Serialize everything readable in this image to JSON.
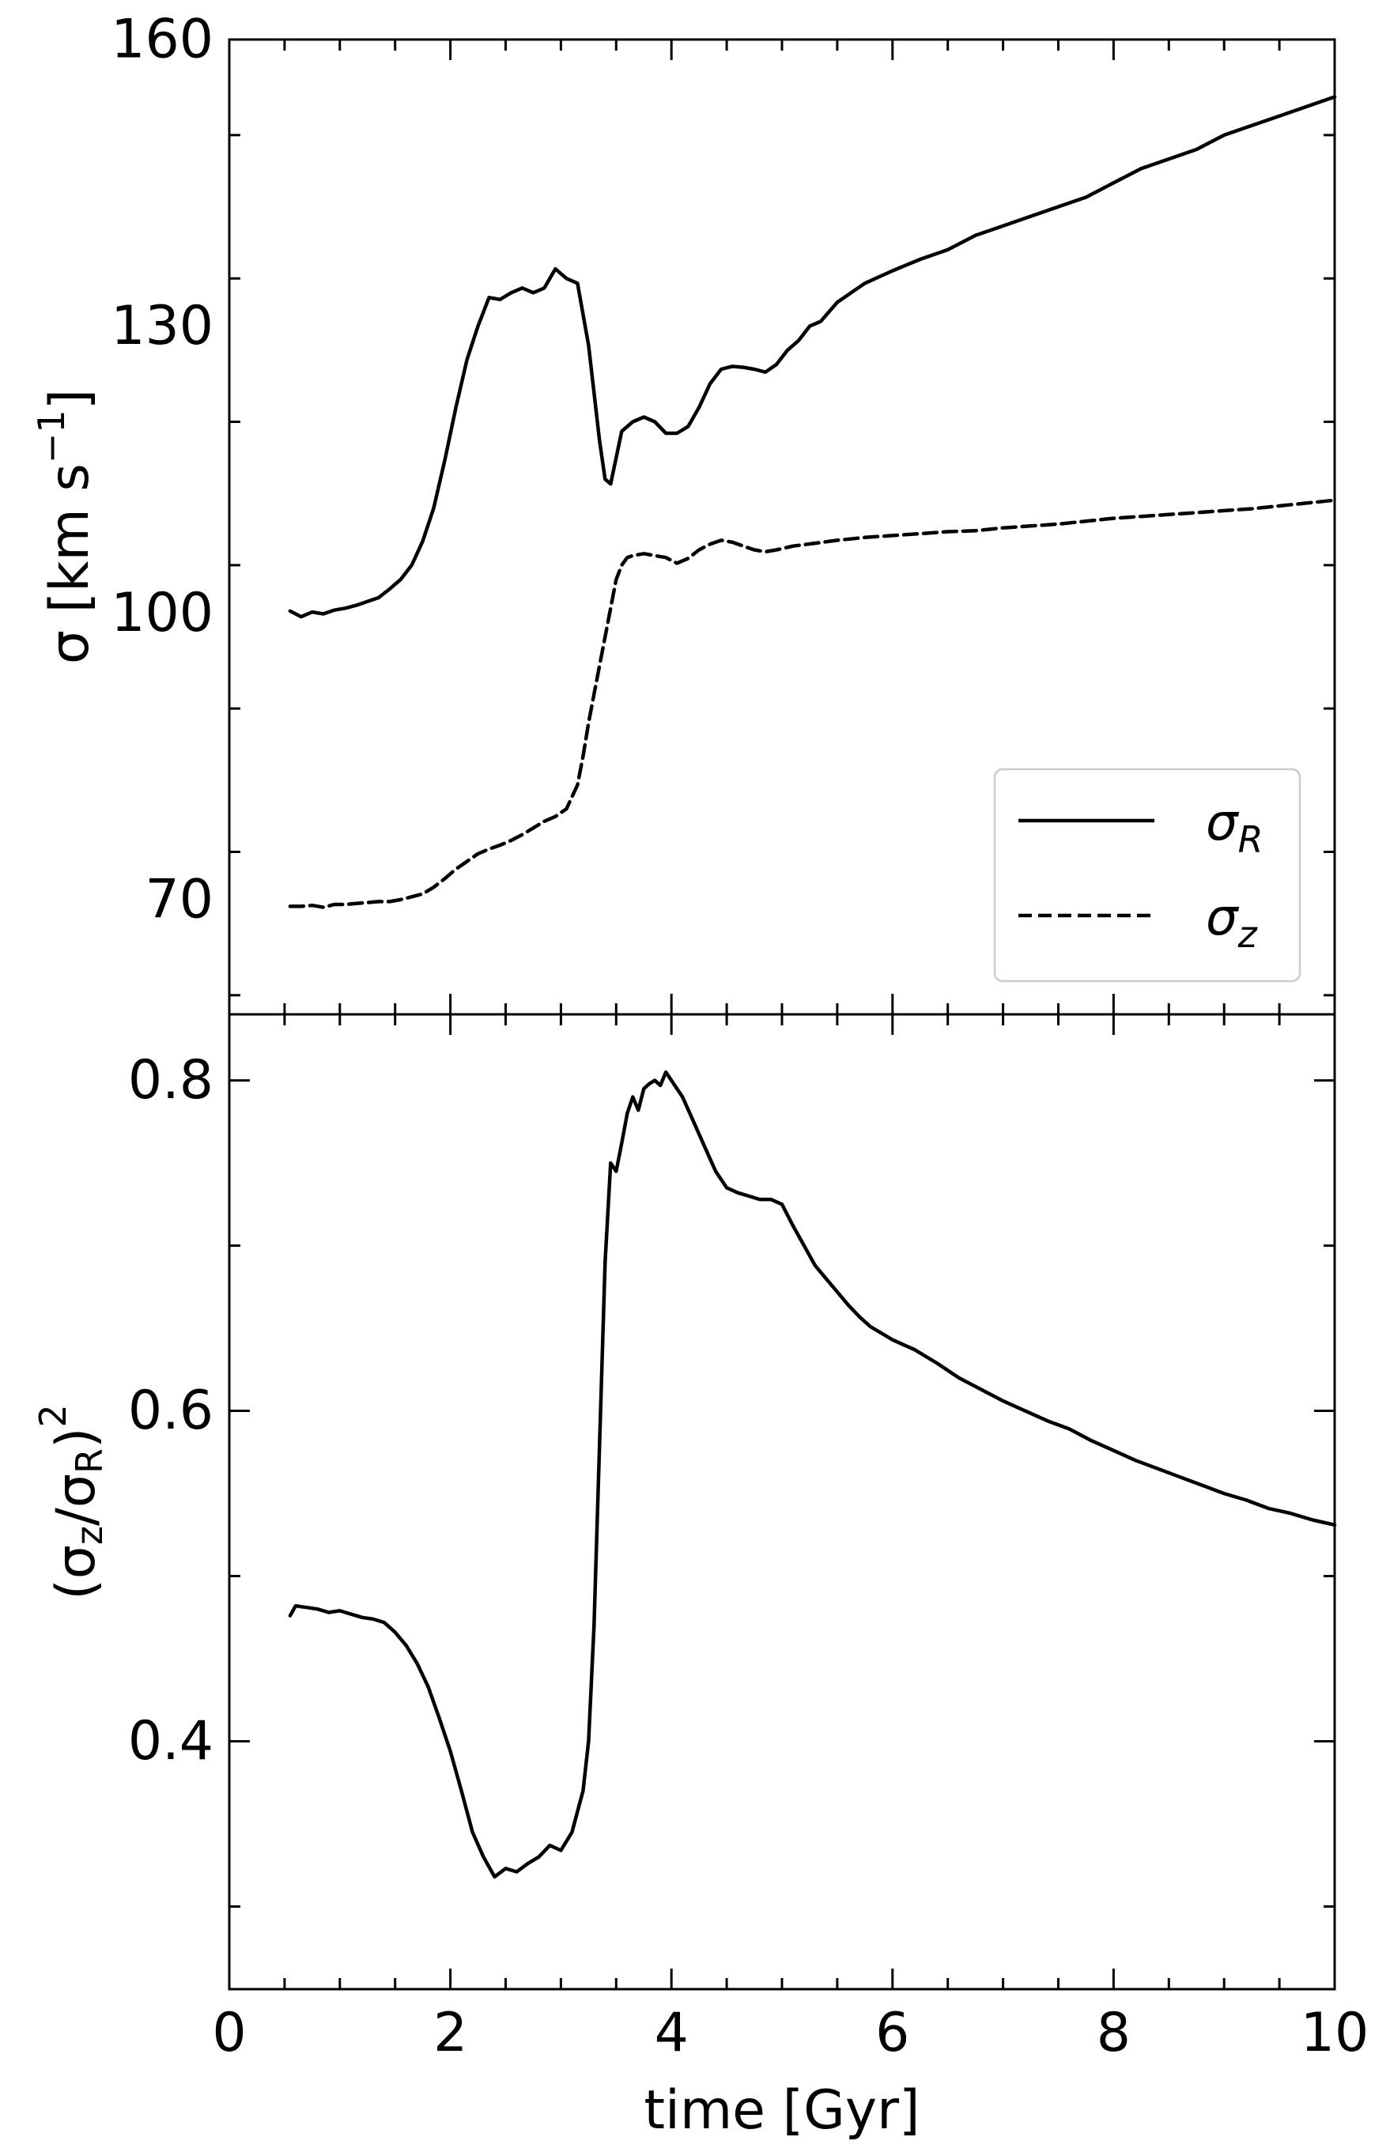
{
  "chart_data": [
    {
      "type": "line",
      "panel": "top",
      "ylabel": "σ [km s⁻¹]",
      "ylabel_parts": {
        "base": "σ [km s",
        "sup": "−1",
        "close": "]"
      },
      "xlim": [
        0,
        10
      ],
      "ylim": [
        58,
        160
      ],
      "xticks": [
        0,
        2,
        4,
        6,
        8,
        10
      ],
      "yticks": [
        70,
        100,
        130,
        160
      ],
      "ytick_labels": [
        "70",
        "100",
        "130",
        "160"
      ],
      "legend": {
        "placement": "lower-right"
      },
      "series": [
        {
          "name": "σR",
          "label_base": "σ",
          "label_sub": "R",
          "style": "solid",
          "x": [
            0.55,
            0.65,
            0.75,
            0.85,
            0.95,
            1.05,
            1.15,
            1.25,
            1.35,
            1.45,
            1.55,
            1.65,
            1.75,
            1.85,
            1.95,
            2.05,
            2.15,
            2.25,
            2.35,
            2.45,
            2.55,
            2.65,
            2.75,
            2.85,
            2.95,
            3.05,
            3.15,
            3.25,
            3.35,
            3.4,
            3.45,
            3.55,
            3.65,
            3.75,
            3.85,
            3.95,
            4.05,
            4.15,
            4.25,
            4.35,
            4.45,
            4.55,
            4.65,
            4.75,
            4.85,
            4.95,
            5.05,
            5.15,
            5.25,
            5.35,
            5.5,
            5.75,
            6.0,
            6.25,
            6.5,
            6.75,
            7.0,
            7.25,
            7.5,
            7.75,
            8.0,
            8.25,
            8.5,
            8.75,
            9.0,
            9.25,
            9.5,
            9.75,
            10.0
          ],
          "y": [
            100.2,
            99.6,
            100.1,
            99.9,
            100.3,
            100.5,
            100.8,
            101.2,
            101.6,
            102.5,
            103.5,
            105.0,
            107.5,
            111.0,
            116.0,
            121.5,
            126.5,
            130.0,
            133.0,
            132.8,
            133.5,
            134.0,
            133.5,
            134.0,
            136.0,
            135.0,
            134.5,
            128.0,
            118.0,
            114.0,
            113.5,
            119.0,
            120.0,
            120.5,
            120.0,
            118.8,
            118.8,
            119.5,
            121.5,
            124.0,
            125.5,
            125.8,
            125.7,
            125.5,
            125.2,
            126.0,
            127.5,
            128.5,
            130.0,
            130.5,
            132.5,
            134.5,
            135.8,
            137.0,
            138.0,
            139.5,
            140.5,
            141.5,
            142.5,
            143.5,
            145.0,
            146.5,
            147.5,
            148.5,
            150.0,
            151.0,
            152.0,
            153.0,
            154.0
          ]
        },
        {
          "name": "σz",
          "label_base": "σ",
          "label_sub": "z",
          "style": "dashed",
          "x": [
            0.55,
            0.65,
            0.75,
            0.85,
            0.95,
            1.05,
            1.15,
            1.25,
            1.35,
            1.45,
            1.55,
            1.65,
            1.75,
            1.85,
            1.95,
            2.05,
            2.15,
            2.25,
            2.35,
            2.45,
            2.55,
            2.65,
            2.75,
            2.85,
            2.95,
            3.05,
            3.15,
            3.2,
            3.25,
            3.3,
            3.35,
            3.4,
            3.45,
            3.5,
            3.55,
            3.6,
            3.65,
            3.75,
            3.85,
            3.95,
            4.05,
            4.15,
            4.25,
            4.35,
            4.45,
            4.55,
            4.65,
            4.75,
            4.85,
            4.95,
            5.1,
            5.3,
            5.5,
            5.75,
            6.0,
            6.25,
            6.5,
            6.75,
            7.0,
            7.25,
            7.5,
            7.75,
            8.0,
            8.25,
            8.5,
            8.75,
            9.0,
            9.25,
            9.5,
            9.75,
            10.0
          ],
          "y": [
            69.3,
            69.3,
            69.4,
            69.2,
            69.5,
            69.5,
            69.6,
            69.7,
            69.8,
            69.8,
            70.0,
            70.3,
            70.6,
            71.3,
            72.2,
            73.2,
            74.0,
            74.8,
            75.3,
            75.7,
            76.2,
            76.8,
            77.5,
            78.2,
            78.7,
            79.5,
            82.0,
            85.0,
            88.5,
            91.5,
            94.5,
            97.5,
            100.5,
            103.5,
            105.0,
            105.8,
            106.0,
            106.2,
            106.0,
            105.8,
            105.2,
            105.7,
            106.6,
            107.2,
            107.6,
            107.4,
            107.0,
            106.6,
            106.4,
            106.6,
            107.0,
            107.3,
            107.6,
            107.9,
            108.1,
            108.3,
            108.5,
            108.6,
            108.9,
            109.1,
            109.3,
            109.6,
            109.9,
            110.1,
            110.3,
            110.5,
            110.7,
            110.9,
            111.2,
            111.5,
            111.8
          ]
        }
      ]
    },
    {
      "type": "line",
      "panel": "bottom",
      "xlabel": "time [Gyr]",
      "ylabel": "(σz/σR)²",
      "ylabel_parts": {
        "open": "(σ",
        "sub1": "z",
        "mid": "/σ",
        "sub2": "R",
        "close": ")",
        "sup": "2"
      },
      "xlim": [
        0,
        10
      ],
      "ylim": [
        0.25,
        0.84
      ],
      "xticks": [
        0,
        2,
        4,
        6,
        8,
        10
      ],
      "xtick_labels": [
        "0",
        "2",
        "4",
        "6",
        "8",
        "10"
      ],
      "yticks": [
        0.4,
        0.6,
        0.8
      ],
      "ytick_labels": [
        "0.4",
        "0.6",
        "0.8"
      ],
      "series": [
        {
          "style": "solid",
          "x": [
            0.55,
            0.6,
            0.7,
            0.8,
            0.9,
            1.0,
            1.1,
            1.2,
            1.3,
            1.4,
            1.5,
            1.6,
            1.7,
            1.8,
            1.9,
            2.0,
            2.1,
            2.2,
            2.3,
            2.4,
            2.5,
            2.6,
            2.7,
            2.8,
            2.9,
            3.0,
            3.1,
            3.2,
            3.25,
            3.3,
            3.35,
            3.4,
            3.45,
            3.5,
            3.55,
            3.6,
            3.65,
            3.7,
            3.75,
            3.8,
            3.85,
            3.9,
            3.95,
            4.0,
            4.1,
            4.2,
            4.3,
            4.4,
            4.5,
            4.6,
            4.7,
            4.8,
            4.9,
            5.0,
            5.1,
            5.2,
            5.3,
            5.4,
            5.5,
            5.6,
            5.7,
            5.8,
            5.9,
            6.0,
            6.2,
            6.4,
            6.6,
            6.8,
            7.0,
            7.2,
            7.4,
            7.6,
            7.8,
            8.0,
            8.2,
            8.4,
            8.6,
            8.8,
            9.0,
            9.2,
            9.4,
            9.6,
            9.8,
            10.0
          ],
          "y": [
            0.476,
            0.482,
            0.481,
            0.48,
            0.478,
            0.479,
            0.477,
            0.475,
            0.474,
            0.472,
            0.466,
            0.458,
            0.447,
            0.433,
            0.414,
            0.394,
            0.37,
            0.345,
            0.33,
            0.318,
            0.323,
            0.321,
            0.326,
            0.33,
            0.337,
            0.334,
            0.345,
            0.37,
            0.4,
            0.47,
            0.58,
            0.69,
            0.75,
            0.745,
            0.762,
            0.78,
            0.79,
            0.782,
            0.795,
            0.798,
            0.8,
            0.797,
            0.805,
            0.8,
            0.79,
            0.775,
            0.76,
            0.745,
            0.735,
            0.732,
            0.73,
            0.728,
            0.728,
            0.725,
            0.712,
            0.7,
            0.688,
            0.68,
            0.672,
            0.664,
            0.657,
            0.651,
            0.647,
            0.643,
            0.637,
            0.629,
            0.62,
            0.613,
            0.606,
            0.6,
            0.594,
            0.589,
            0.582,
            0.576,
            0.57,
            0.565,
            0.56,
            0.555,
            0.55,
            0.546,
            0.541,
            0.538,
            0.534,
            0.531
          ]
        }
      ]
    }
  ]
}
